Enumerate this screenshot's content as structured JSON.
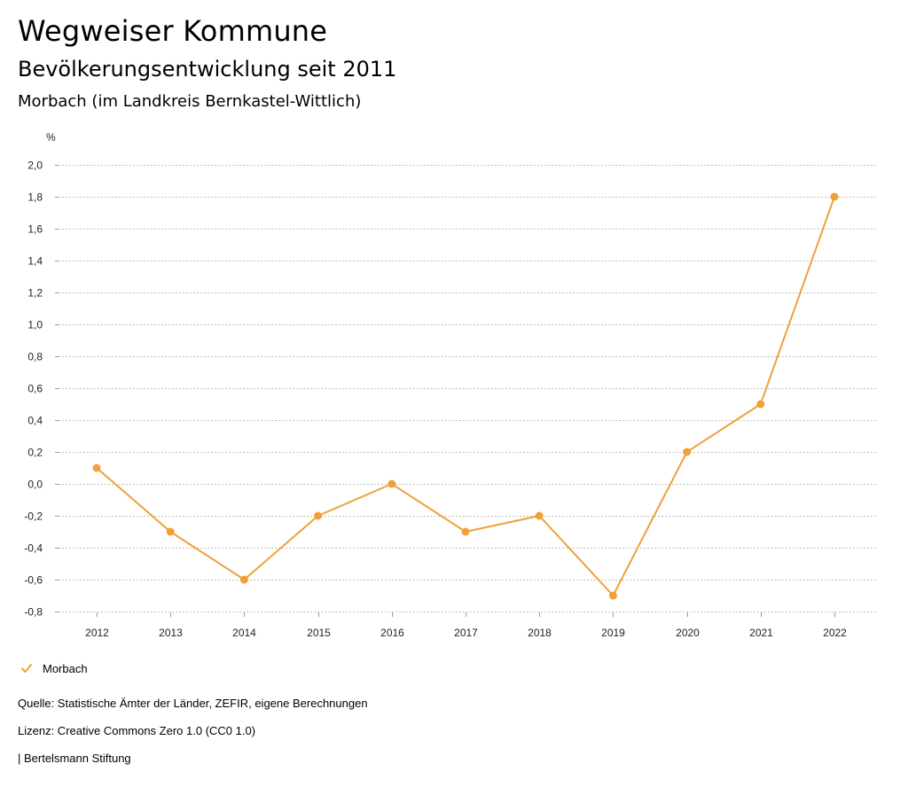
{
  "header": {
    "title": "Wegweiser Kommune",
    "subtitle": "Bevölkerungsentwicklung seit 2011",
    "region": "Morbach (im Landkreis Bernkastel-Wittlich)"
  },
  "chart_data": {
    "type": "line",
    "ylabel": "%",
    "x": [
      "2012",
      "2013",
      "2014",
      "2015",
      "2016",
      "2017",
      "2018",
      "2019",
      "2020",
      "2021",
      "2022"
    ],
    "series": [
      {
        "name": "Morbach",
        "color": "#f0a03a",
        "values": [
          0.1,
          -0.3,
          -0.6,
          -0.2,
          0.0,
          -0.3,
          -0.2,
          -0.7,
          0.2,
          0.5,
          1.8
        ]
      }
    ],
    "ylim": [
      -0.8,
      2.0
    ],
    "yticks": [
      "2,0",
      "1,8",
      "1,6",
      "1,4",
      "1,2",
      "1,0",
      "0,8",
      "0,6",
      "0,4",
      "0,2",
      "0,0",
      "-0,2",
      "-0,4",
      "-0,6",
      "-0,8"
    ],
    "grid": true,
    "legend": "bottom-left"
  },
  "legend": {
    "label": "Morbach"
  },
  "footer": {
    "source": "Quelle: Statistische Ämter der Länder, ZEFIR, eigene Berechnungen",
    "license": "Lizenz: Creative Commons Zero 1.0 (CC0 1.0)",
    "publisher": "| Bertelsmann Stiftung"
  }
}
